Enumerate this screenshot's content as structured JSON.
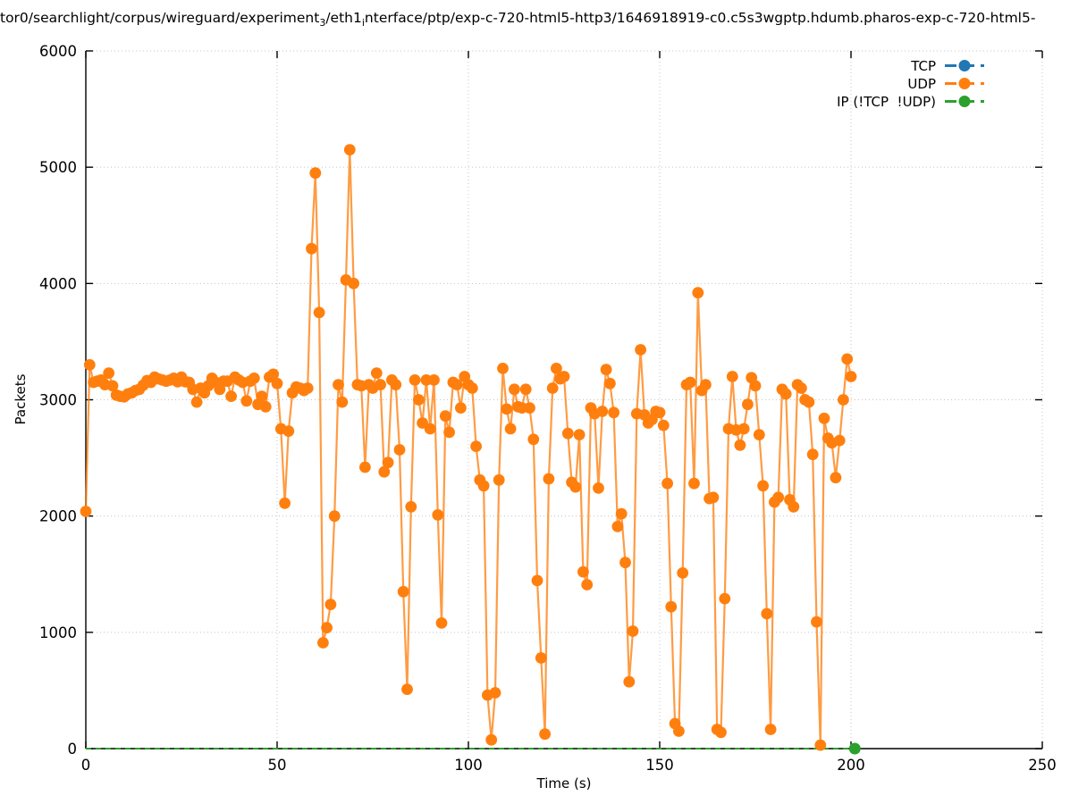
{
  "title": {
    "pre": "tor0/searchlight/corpus/wireguard/experiment",
    "sub1": "3",
    "mid": "/eth1",
    "sub2": "i",
    "post": "nterface/ptp/exp-c-720-html5-http3/1646918919-c0.c5s3wgptp.hdumb.pharos-exp-c-720-html5-"
  },
  "axes": {
    "x_label": "Time (s)",
    "y_label": "Packets",
    "x_ticks": [
      0,
      50,
      100,
      150,
      200,
      250
    ],
    "y_ticks": [
      0,
      1000,
      2000,
      3000,
      4000,
      5000,
      6000
    ],
    "x_range": [
      0,
      250
    ],
    "y_range": [
      0,
      6000
    ]
  },
  "legend": [
    {
      "label": "TCP",
      "color": "#1f77b4"
    },
    {
      "label": "UDP",
      "color": "#ff7f0e"
    },
    {
      "label": "IP (!TCP  !UDP)",
      "color": "#2ca02c"
    }
  ],
  "colors": {
    "tcp": "#1f77b4",
    "udp": "#ff7f0e",
    "udp_line": "rgba(255,127,14,0.78)",
    "ip_other": "#2ca02c",
    "grid": "#c4c4c4",
    "axis": "#000000"
  },
  "chart_data": {
    "type": "line",
    "title": "tor0/searchlight/corpus/wireguard/experiment_3/eth1_interface/ptp/exp-c-720-html5-http3/1646918919-c0.c5s3wgptp.hdumb.pharos-exp-c-720-html5-",
    "xlabel": "Time (s)",
    "ylabel": "Packets",
    "xlim": [
      0,
      250
    ],
    "ylim": [
      0,
      6000
    ],
    "grid": true,
    "legend_position": "top-right-inside",
    "series": [
      {
        "name": "TCP",
        "color": "#1f77b4",
        "style": "dashed-line-with-points",
        "x": [],
        "values": []
      },
      {
        "name": "UDP",
        "color": "#ff7f0e",
        "style": "line-with-points",
        "x_start": 0,
        "x_step": 1,
        "values": [
          2040,
          3300,
          3150,
          3160,
          3170,
          3130,
          3230,
          3120,
          3040,
          3030,
          3025,
          3050,
          3060,
          3080,
          3090,
          3125,
          3165,
          3150,
          3195,
          3180,
          3170,
          3160,
          3170,
          3185,
          3155,
          3195,
          3155,
          3150,
          3090,
          2980,
          3100,
          3060,
          3120,
          3185,
          3150,
          3090,
          3160,
          3160,
          3030,
          3195,
          3170,
          3150,
          2990,
          3160,
          3185,
          2960,
          3030,
          2940,
          3195,
          3220,
          3140,
          2750,
          2110,
          2730,
          3060,
          3110,
          3100,
          3080,
          3100,
          4300,
          4950,
          3750,
          910,
          1040,
          1240,
          2000,
          3130,
          2980,
          4030,
          5150,
          4000,
          3130,
          3120,
          2420,
          3130,
          3100,
          3230,
          3130,
          2380,
          2460,
          3170,
          3130,
          2570,
          1350,
          510,
          2080,
          3170,
          3000,
          2800,
          3170,
          2750,
          3170,
          2010,
          1080,
          2860,
          2720,
          3150,
          3130,
          2930,
          3200,
          3130,
          3100,
          2600,
          2310,
          2260,
          460,
          75,
          480,
          2310,
          3270,
          2920,
          2750,
          3090,
          2940,
          2930,
          3090,
          2930,
          2660,
          1445,
          780,
          125,
          2320,
          3100,
          3270,
          3180,
          3200,
          2710,
          2290,
          2250,
          2700,
          1520,
          1410,
          2930,
          2880,
          2240,
          2900,
          3260,
          3140,
          2890,
          1910,
          2020,
          1600,
          575,
          1010,
          2880,
          3430,
          2870,
          2800,
          2830,
          2900,
          2890,
          2780,
          2280,
          1220,
          215,
          150,
          1510,
          3130,
          3150,
          2280,
          3920,
          3080,
          3130,
          2150,
          2160,
          165,
          140,
          1290,
          2750,
          3200,
          2740,
          2610,
          2750,
          2960,
          3190,
          3120,
          2700,
          2260,
          1160,
          165,
          2120,
          2160,
          3090,
          3050,
          2140,
          2080,
          3130,
          3100,
          3000,
          2980,
          2530,
          1090,
          30,
          2840,
          2670,
          2630,
          2330,
          2650,
          3000,
          3350,
          3200
        ]
      },
      {
        "name": "IP (!TCP  !UDP)",
        "color": "#2ca02c",
        "style": "dashed-line-with-points",
        "constant_value": 0,
        "x_start": 0,
        "x_end": 201,
        "visible_marker_x": 201
      }
    ]
  }
}
